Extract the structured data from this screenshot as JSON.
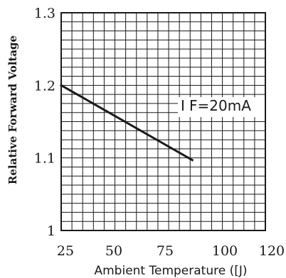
{
  "chart_data": {
    "type": "line",
    "title": "",
    "xlabel": "Ambient Temperature (°C)",
    "xlabel_display": "Ambient Temperature ([J)",
    "ylabel": "Relative Forward Voltage",
    "x_ticks": [
      25,
      50,
      75,
      100,
      120
    ],
    "x_tick_labels": [
      "25",
      "50",
      "75",
      "100",
      "120"
    ],
    "y_ticks": [
      1.0,
      1.1,
      1.2,
      1.3
    ],
    "y_tick_labels": [
      "1",
      "1.1",
      "1.2",
      "1.3"
    ],
    "xlim": [
      25,
      120
    ],
    "ylim": [
      1.0,
      1.3
    ],
    "grid": true,
    "legend": "none",
    "annotation": {
      "main": "F=20mA",
      "prefix": "I"
    },
    "series": [
      {
        "x": [
          25,
          86
        ],
        "y": [
          1.2,
          1.097
        ]
      }
    ],
    "colors": {
      "line": "#1a1a1a",
      "grid": "#1a1a1a",
      "frame": "#1a1a1a",
      "background": "#ffffff"
    }
  }
}
